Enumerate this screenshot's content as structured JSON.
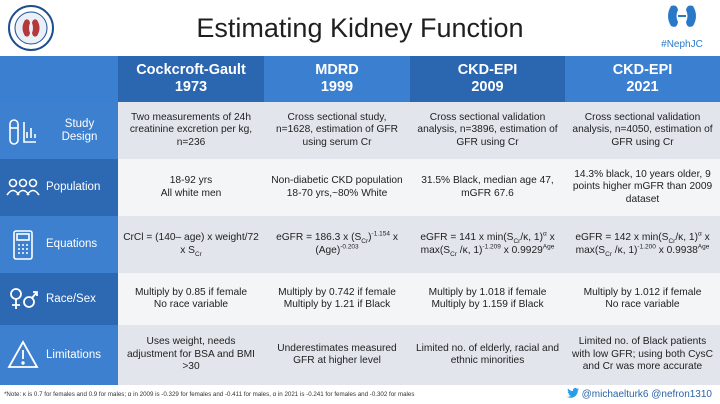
{
  "title": "Estimating Kidney Function",
  "hashtag": "#NephJC",
  "columns": [
    {
      "name": "Cockcroft-Gault",
      "year": "1973"
    },
    {
      "name": "MDRD",
      "year": "1999"
    },
    {
      "name": "CKD-EPI",
      "year": "2009"
    },
    {
      "name": "CKD-EPI",
      "year": "2021"
    }
  ],
  "rows": [
    {
      "label": "Study Design",
      "cells": [
        "Two measurements of 24h creatinine excretion per kg, n=236",
        "Cross sectional study, n=1628, estimation of GFR using serum Cr",
        "Cross sectional validation analysis, n=3896, estimation of GFR using Cr",
        "Cross sectional validation analysis, n=4050, estimation of GFR using Cr"
      ]
    },
    {
      "label": "Population",
      "cells": [
        "18-92 yrs\nAll white men",
        "Non-diabetic CKD population\n18-70 yrs,~80% White",
        "31.5% Black, median age 47, mGFR 67.6",
        "14.3% black, 10 years older, 9 points higher mGFR than 2009 dataset"
      ]
    },
    {
      "label": "Equations",
      "eq": {
        "cg_a": "CrCl = (140– age) x weight/72 x S",
        "cg_sub": "Cr",
        "mdrd_a": "eGFR = 186.3 x (S",
        "mdrd_sub": "Cr",
        "mdrd_b": ")",
        "mdrd_exp1": "-1.154",
        "mdrd_c": " x (Age)",
        "mdrd_exp2": "-0.203",
        "e09_a": "eGFR = 141 x min(S",
        "e09_sub1": "Cr",
        "e09_b": "/κ, 1)",
        "e09_exp1": "α",
        "e09_c": " x max(S",
        "e09_sub2": "Cr",
        "e09_d": " /κ, 1)",
        "e09_exp2": "-1.209",
        "e09_e": " x 0.9929",
        "e09_exp3": "Age",
        "e21_a": "eGFR = 142 x min(S",
        "e21_sub1": "Cr",
        "e21_b": "/κ, 1)",
        "e21_exp1": "α",
        "e21_c": " x max(S",
        "e21_sub2": "Cr",
        "e21_d": " /κ, 1)",
        "e21_exp2": "-1.200",
        "e21_e": " x 0.9938",
        "e21_exp3": "Age"
      }
    },
    {
      "label": "Race/Sex",
      "cells": [
        "Multiply by 0.85 if female\nNo race variable",
        "Multiply by 0.742 if female\nMultiply by 1.21 if Black",
        "Multiply by 1.018 if female\nMultiply by 1.159 if Black",
        "Multiply by 1.012 if female\nNo race variable"
      ]
    },
    {
      "label": "Limitations",
      "cells": [
        "Uses weight, needs adjustment for BSA and BMI >30",
        "Underestimates measured GFR at higher level",
        "Limited no. of elderly, racial and ethnic minorities",
        "Limited no. of Black patients with low GFR; using both CysC and Cr was more accurate"
      ]
    }
  ],
  "footnote": "*Note: κ is 0.7 for females and 0.9 for males; α in 2009 is -0.329 for females and -0.411 for males, α in 2021 is -0.241 for females and -0.302 for males",
  "handles": "@michaelturk6  @nefron1310",
  "colors": {
    "accent": "#3d80cf",
    "accent_dark": "#2b66b1",
    "row_light": "#e2e6ec",
    "row_white": "#f4f5f7"
  }
}
